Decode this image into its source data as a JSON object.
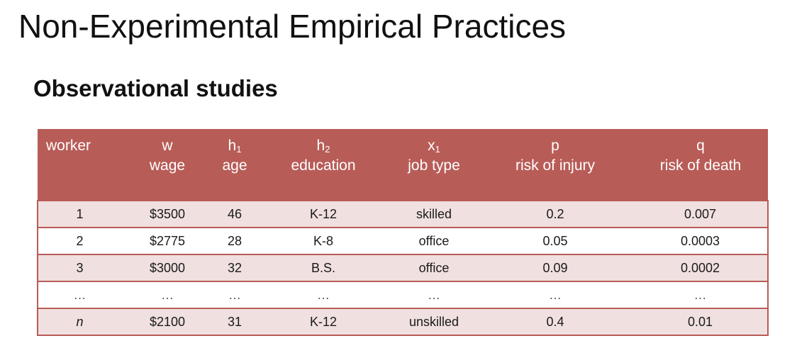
{
  "slide": {
    "title": "Non-Experimental Empirical Practices",
    "subtitle": "Observational studies"
  },
  "table": {
    "columns": [
      {
        "symbol": "",
        "subscript": "",
        "label": "worker"
      },
      {
        "symbol": "w",
        "subscript": "",
        "label": "wage"
      },
      {
        "symbol": "h",
        "subscript": "1",
        "label": "age"
      },
      {
        "symbol": "h",
        "subscript": "2",
        "label": "education"
      },
      {
        "symbol": "x",
        "subscript": "1",
        "label": "job type"
      },
      {
        "symbol": "p",
        "subscript": "",
        "label": "risk of injury"
      },
      {
        "symbol": "q",
        "subscript": "",
        "label": "risk of death"
      }
    ],
    "rows": [
      [
        "1",
        "$3500",
        "46",
        "K-12",
        "skilled",
        "0.2",
        "0.007"
      ],
      [
        "2",
        "$2775",
        "28",
        "K-8",
        "office",
        "0.05",
        "0.0003"
      ],
      [
        "3",
        "$3000",
        "32",
        "B.S.",
        "office",
        "0.09",
        "0.0002"
      ],
      [
        "…",
        "…",
        "…",
        "…",
        "…",
        "…",
        "…"
      ],
      [
        "n",
        "$2100",
        "31",
        "K-12",
        "unskilled",
        "0.4",
        "0.01"
      ]
    ]
  },
  "colors": {
    "header_bg": "#b85c57",
    "row_alt_bg": "#f0e0e0",
    "border": "#b85c57"
  }
}
